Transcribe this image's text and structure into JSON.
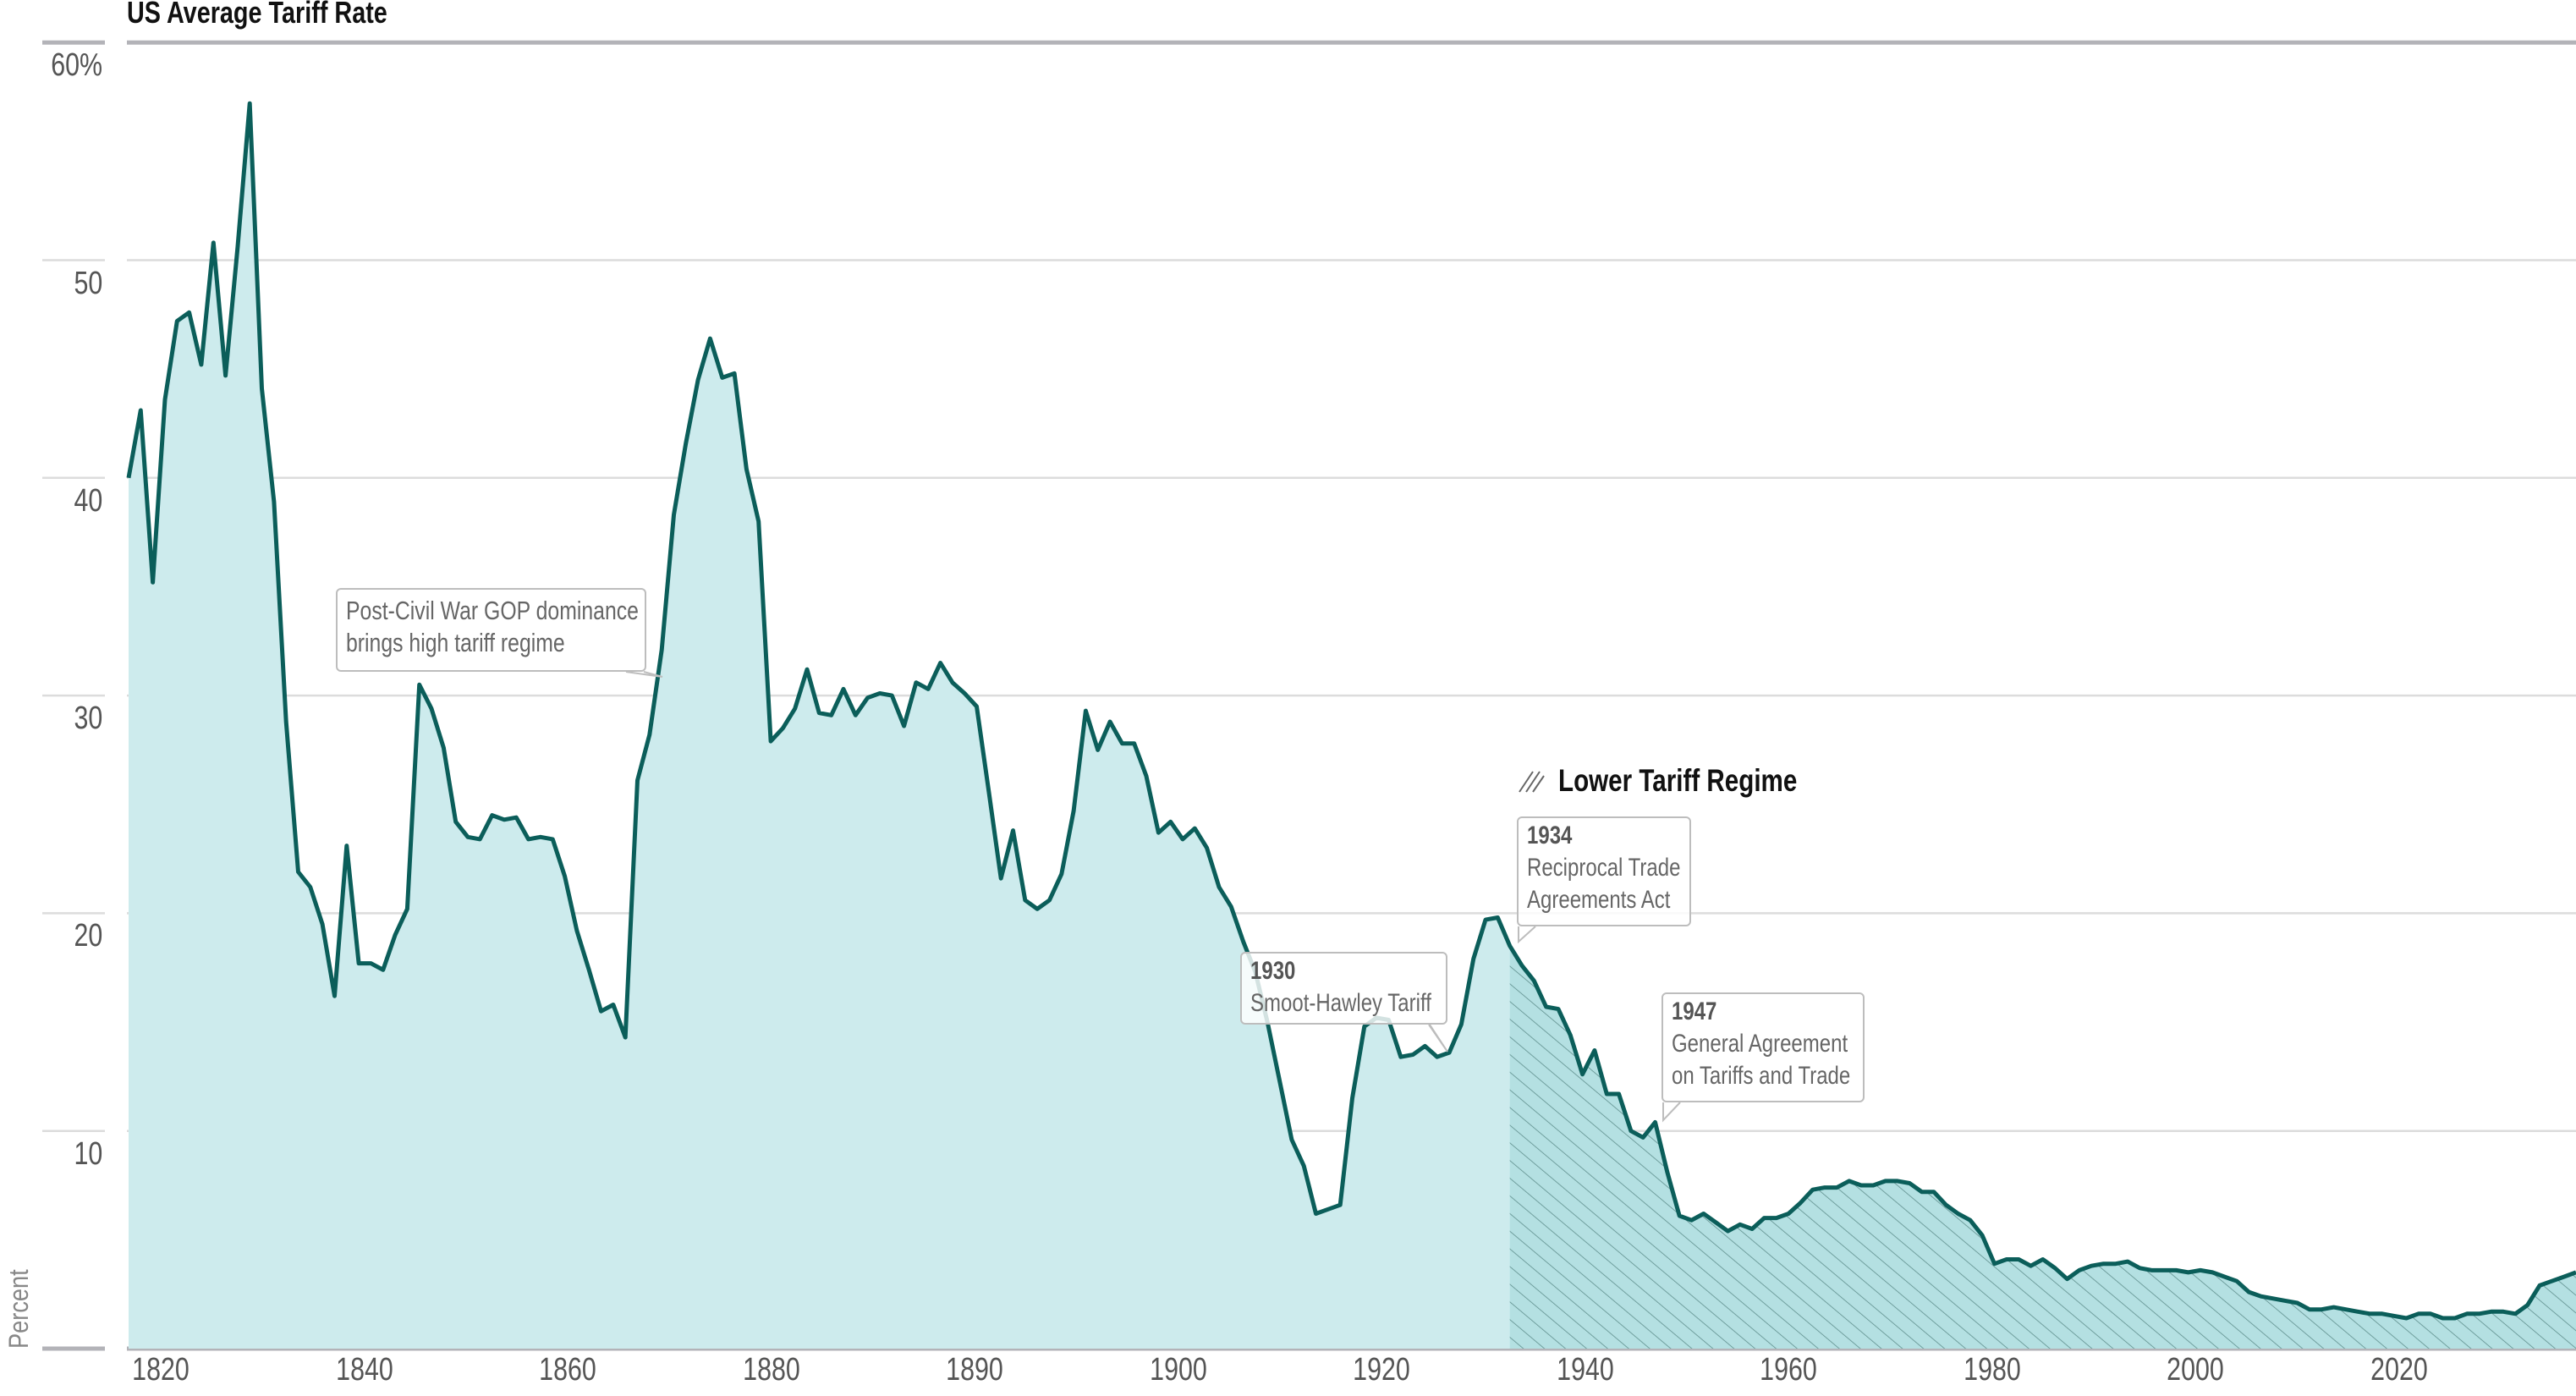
{
  "chart_data": {
    "type": "area",
    "title": "US Average Tariff Rate",
    "ylabel": "Percent",
    "ylim": [
      0,
      60
    ],
    "y_ticks": [
      "60%",
      "50",
      "40",
      "30",
      "20",
      "10"
    ],
    "x_tick_labels": [
      "1820",
      "1840",
      "1860",
      "1880",
      "1890",
      "1900",
      "1920",
      "1940",
      "1960",
      "1980",
      "2000",
      "2020"
    ],
    "grid": "horizontal",
    "x_start": 1820,
    "x_step": 1,
    "values": [
      40.0,
      43.1,
      35.2,
      43.6,
      47.2,
      47.6,
      45.2,
      50.8,
      44.7,
      50.6,
      57.2,
      44.1,
      38.9,
      28.8,
      21.9,
      21.2,
      19.5,
      16.2,
      23.1,
      17.7,
      17.7,
      17.4,
      19.0,
      20.2,
      30.5,
      29.4,
      27.6,
      24.2,
      23.5,
      23.4,
      24.5,
      24.3,
      24.4,
      23.4,
      23.5,
      23.4,
      21.7,
      19.2,
      17.4,
      15.5,
      15.8,
      14.3,
      26.1,
      28.2,
      32.1,
      38.3,
      41.6,
      44.5,
      46.4,
      44.6,
      44.8,
      40.4,
      38.0,
      27.9,
      28.5,
      29.4,
      31.2,
      29.2,
      29.1,
      30.3,
      29.1,
      29.9,
      30.1,
      30.0,
      28.6,
      30.6,
      30.3,
      31.5,
      30.6,
      30.1,
      29.5,
      25.6,
      21.6,
      23.8,
      20.6,
      20.2,
      20.6,
      21.8,
      24.7,
      29.3,
      27.5,
      28.8,
      27.8,
      27.8,
      26.3,
      23.7,
      24.2,
      23.4,
      23.9,
      23.0,
      21.2,
      20.3,
      18.7,
      17.3,
      15.0,
      12.3,
      9.6,
      8.4,
      6.2,
      6.4,
      6.6,
      11.5,
      14.8,
      15.2,
      15.1,
      13.4,
      13.5,
      13.9,
      13.4,
      13.6,
      14.9,
      17.9,
      19.7,
      19.8,
      18.5,
      17.6,
      16.9,
      15.7,
      15.6,
      14.4,
      12.6,
      13.7,
      11.7,
      11.7,
      10.0,
      9.7,
      10.4,
      8.1,
      6.1,
      5.9,
      6.2,
      5.8,
      5.4,
      5.7,
      5.5,
      6.0,
      6.0,
      6.2,
      6.7,
      7.3,
      7.4,
      7.4,
      7.7,
      7.5,
      7.5,
      7.7,
      7.7,
      7.6,
      7.2,
      7.2,
      6.6,
      6.2,
      5.9,
      5.2,
      3.9,
      4.1,
      4.1,
      3.8,
      4.1,
      3.7,
      3.2,
      3.6,
      3.8,
      3.9,
      3.9,
      4.0,
      3.7,
      3.6,
      3.6,
      3.6,
      3.5,
      3.6,
      3.5,
      3.3,
      3.1,
      2.6,
      2.4,
      2.3,
      2.2,
      2.1,
      1.8,
      1.8,
      1.9,
      1.8,
      1.7,
      1.6,
      1.6,
      1.5,
      1.4,
      1.6,
      1.6,
      1.4,
      1.4,
      1.6,
      1.6,
      1.7,
      1.7,
      1.6,
      2.0,
      2.9,
      3.1,
      3.3,
      3.5
    ],
    "shaded_region": {
      "label": "Lower Tariff Regime",
      "start": 1934,
      "pattern": "hatched"
    },
    "annotations": [
      {
        "year": 1868,
        "title": "",
        "lines": [
          "Post-Civil War GOP dominance",
          "brings high tariff regime"
        ]
      },
      {
        "year": 1929,
        "title": "1930",
        "lines": [
          "Smoot-Hawley Tariff"
        ]
      },
      {
        "year": 1934,
        "title": "1934",
        "lines": [
          "Reciprocal Trade",
          "Agreements Act"
        ]
      },
      {
        "year": 1947,
        "title": "1947",
        "lines": [
          "General Agreement",
          "on Tariffs and Trade"
        ]
      }
    ],
    "colors": {
      "line": "#0b5e5a",
      "fill": "#cdebed",
      "hatched_fill": "#b4e0e2",
      "hatch": "#5f8f8d",
      "grid": "#dcdcdc",
      "axis": "#b3b3b8"
    }
  }
}
